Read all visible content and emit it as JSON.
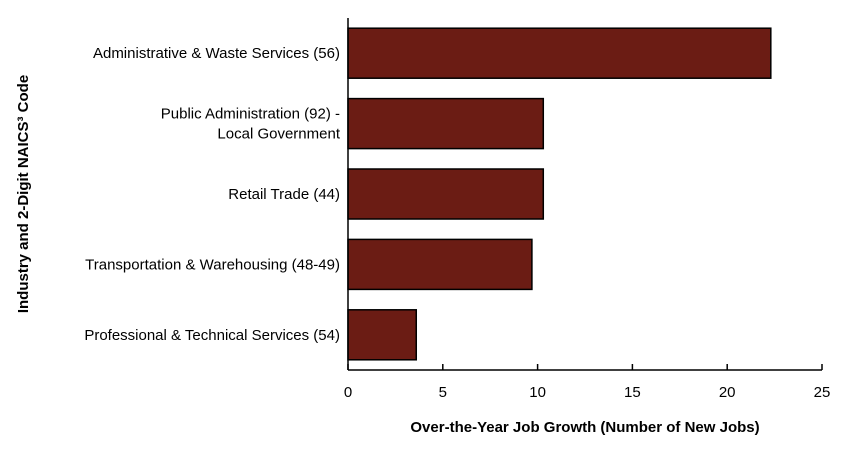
{
  "chart_data": {
    "type": "bar",
    "orientation": "horizontal",
    "categories": [
      "Administrative & Waste Services (56)",
      [
        "Public Administration (92) -",
        "Local Government"
      ],
      "Retail Trade (44)",
      "Transportation & Warehousing (48-49)",
      "Professional & Technical Services (54)"
    ],
    "values": [
      22.3,
      10.3,
      10.3,
      9.7,
      3.6
    ],
    "xlabel": "Over-the-Year Job Growth (Number of New Jobs)",
    "ylabel": "Industry and 2-Digit NAICS³ Code",
    "xlim": [
      0,
      25
    ],
    "xticks": [
      0,
      5,
      10,
      15,
      20,
      25
    ],
    "grid": false,
    "legend": "none",
    "bar_color": "#6b1c14",
    "bar_edge_color": "#000000"
  }
}
